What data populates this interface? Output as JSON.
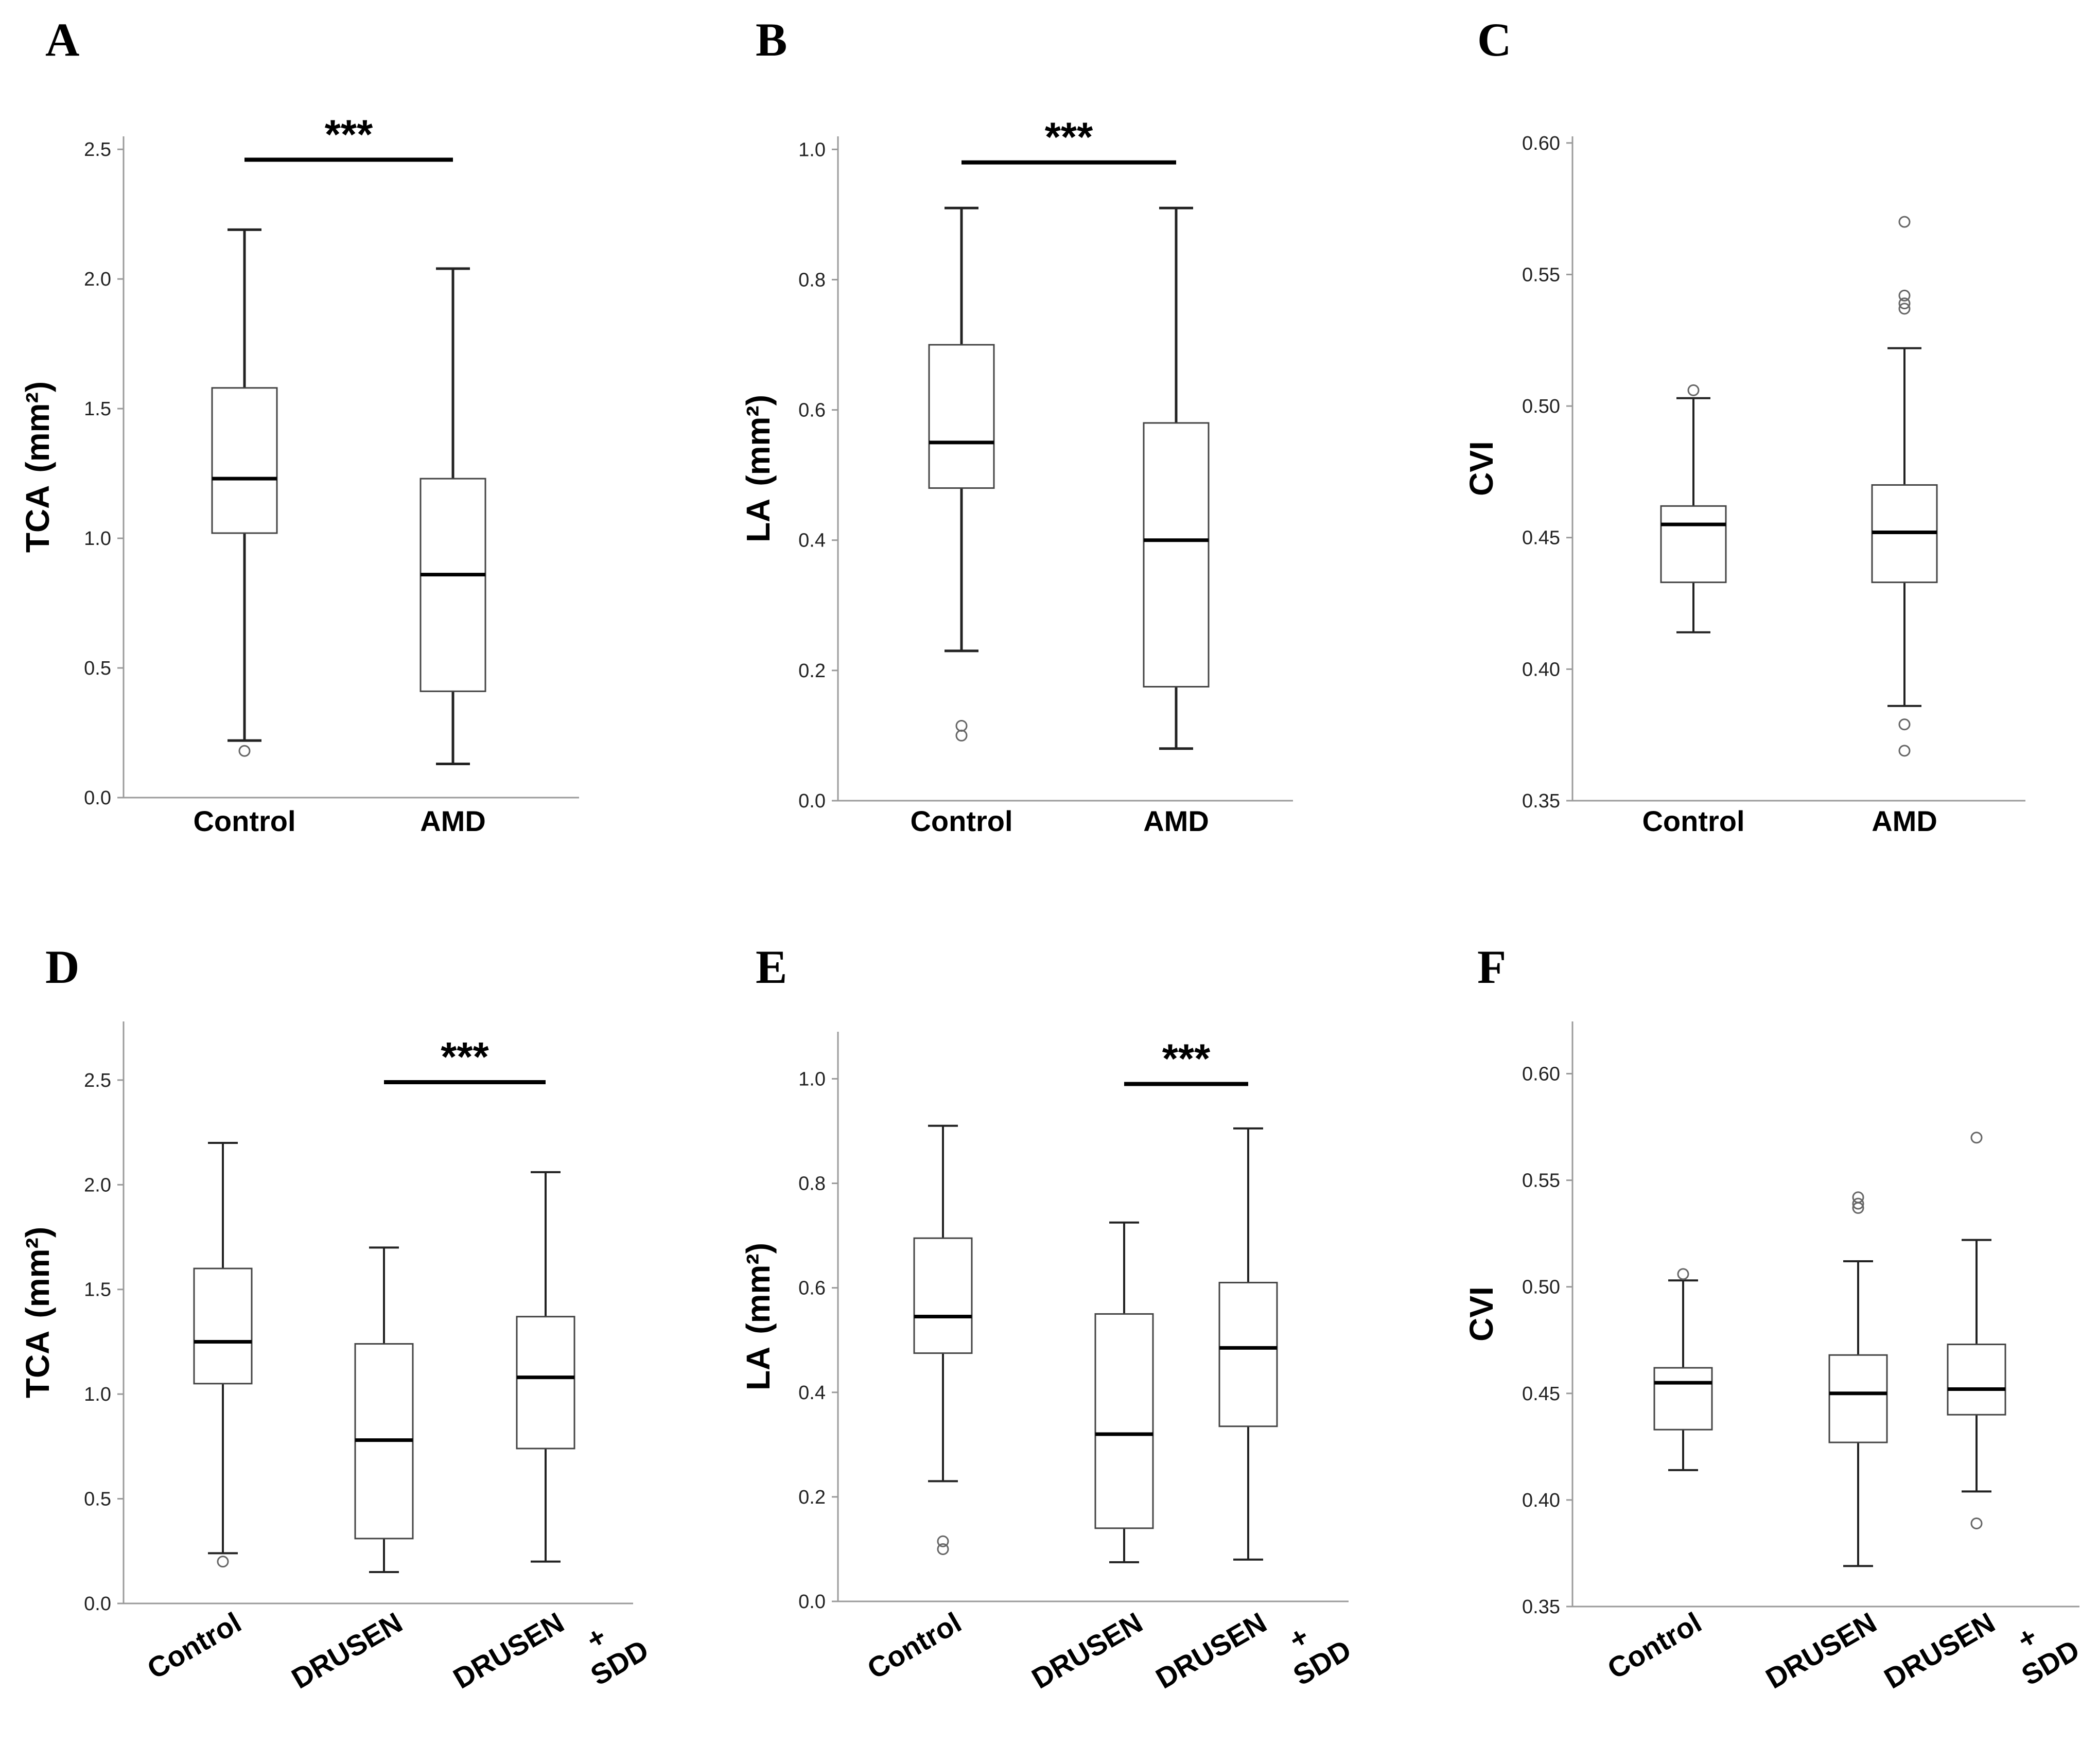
{
  "chart_data": [
    {
      "panel": "A",
      "type": "box",
      "ylabel": "TCA",
      "ylabel_unit": "(mm²)",
      "ylim": [
        0,
        2.55
      ],
      "yticks": [
        0.0,
        0.5,
        1.0,
        1.5,
        2.0,
        2.5
      ],
      "ytick_labels": [
        "0.0",
        "0.5",
        "1.0",
        "1.5",
        "2.0",
        "2.5"
      ],
      "categories": [
        "Control",
        "AMD"
      ],
      "label_rotation": 0,
      "boxes": [
        {
          "category": "Control",
          "whisker_low": 0.22,
          "q1": 1.02,
          "median": 1.23,
          "q3": 1.58,
          "whisker_high": 2.19,
          "outliers": [
            0.18
          ]
        },
        {
          "category": "AMD",
          "whisker_low": 0.13,
          "q1": 0.41,
          "median": 0.86,
          "q3": 1.23,
          "whisker_high": 2.04,
          "outliers": []
        }
      ],
      "significance": {
        "from": 0,
        "to": 1,
        "level": 2.46,
        "label": "***"
      }
    },
    {
      "panel": "B",
      "type": "box",
      "ylabel": "LA",
      "ylabel_unit": "(mm²)",
      "ylim": [
        0,
        1.02
      ],
      "yticks": [
        0.0,
        0.2,
        0.4,
        0.6,
        0.8,
        1.0
      ],
      "ytick_labels": [
        "0.0",
        "0.2",
        "0.4",
        "0.6",
        "0.8",
        "1.0"
      ],
      "categories": [
        "Control",
        "AMD"
      ],
      "label_rotation": 0,
      "boxes": [
        {
          "category": "Control",
          "whisker_low": 0.23,
          "q1": 0.48,
          "median": 0.55,
          "q3": 0.7,
          "whisker_high": 0.91,
          "outliers": [
            0.1,
            0.115
          ]
        },
        {
          "category": "AMD",
          "whisker_low": 0.08,
          "q1": 0.175,
          "median": 0.4,
          "q3": 0.58,
          "whisker_high": 0.91,
          "outliers": []
        }
      ],
      "significance": {
        "from": 0,
        "to": 1,
        "level": 0.98,
        "label": "***"
      }
    },
    {
      "panel": "C",
      "type": "box",
      "ylabel": "CVI",
      "ylabel_unit": "",
      "ylim": [
        0.35,
        0.6025
      ],
      "yticks": [
        0.35,
        0.4,
        0.45,
        0.5,
        0.55,
        0.6
      ],
      "ytick_labels": [
        "0.35",
        "0.40",
        "0.45",
        "0.50",
        "0.55",
        "0.60"
      ],
      "categories": [
        "Control",
        "AMD"
      ],
      "label_rotation": 0,
      "boxes": [
        {
          "category": "Control",
          "whisker_low": 0.414,
          "q1": 0.433,
          "median": 0.455,
          "q3": 0.462,
          "whisker_high": 0.503,
          "outliers": [
            0.506
          ]
        },
        {
          "category": "AMD",
          "whisker_low": 0.386,
          "q1": 0.433,
          "median": 0.452,
          "q3": 0.47,
          "whisker_high": 0.522,
          "outliers": [
            0.369,
            0.379,
            0.537,
            0.539,
            0.542,
            0.57
          ]
        }
      ],
      "significance": null
    },
    {
      "panel": "D",
      "type": "box",
      "ylabel": "TCA",
      "ylabel_unit": "(mm²)",
      "ylim": [
        0,
        2.78
      ],
      "yticks": [
        0.0,
        0.5,
        1.0,
        1.5,
        2.0,
        2.5
      ],
      "ytick_labels": [
        "0.0",
        "0.5",
        "1.0",
        "1.5",
        "2.0",
        "2.5"
      ],
      "categories": [
        "Control",
        "DRUSEN",
        "DRUSEN|+|SDD"
      ],
      "label_rotation": -30,
      "boxes": [
        {
          "category": "Control",
          "whisker_low": 0.24,
          "q1": 1.05,
          "median": 1.25,
          "q3": 1.6,
          "whisker_high": 2.2,
          "outliers": [
            0.2
          ]
        },
        {
          "category": "DRUSEN",
          "whisker_low": 0.15,
          "q1": 0.31,
          "median": 0.78,
          "q3": 1.24,
          "whisker_high": 1.7,
          "outliers": []
        },
        {
          "category": "DRUSEN + SDD",
          "whisker_low": 0.2,
          "q1": 0.74,
          "median": 1.08,
          "q3": 1.37,
          "whisker_high": 2.06,
          "outliers": []
        }
      ],
      "significance": {
        "from": 1,
        "to": 2,
        "level": 2.49,
        "label": "***"
      }
    },
    {
      "panel": "E",
      "type": "box",
      "ylabel": "LA",
      "ylabel_unit": "(mm²)",
      "ylim": [
        0,
        1.09
      ],
      "yticks": [
        0.0,
        0.2,
        0.4,
        0.6,
        0.8,
        1.0
      ],
      "ytick_labels": [
        "0.0",
        "0.2",
        "0.4",
        "0.6",
        "0.8",
        "1.0"
      ],
      "categories": [
        "Control",
        "DRUSEN",
        "DRUSEN|+|SDD"
      ],
      "label_rotation": -30,
      "boxes": [
        {
          "category": "Control",
          "whisker_low": 0.23,
          "q1": 0.475,
          "median": 0.545,
          "q3": 0.695,
          "whisker_high": 0.91,
          "outliers": [
            0.1,
            0.115
          ]
        },
        {
          "category": "DRUSEN",
          "whisker_low": 0.075,
          "q1": 0.14,
          "median": 0.32,
          "q3": 0.55,
          "whisker_high": 0.725,
          "outliers": []
        },
        {
          "category": "DRUSEN + SDD",
          "whisker_low": 0.08,
          "q1": 0.335,
          "median": 0.485,
          "q3": 0.61,
          "whisker_high": 0.905,
          "outliers": []
        }
      ],
      "significance": {
        "from": 1,
        "to": 2,
        "level": 0.99,
        "label": "***"
      }
    },
    {
      "panel": "F",
      "type": "box",
      "ylabel": "CVI",
      "ylabel_unit": "",
      "ylim": [
        0.35,
        0.6245
      ],
      "yticks": [
        0.35,
        0.4,
        0.45,
        0.5,
        0.55,
        0.6
      ],
      "ytick_labels": [
        "0.35",
        "0.40",
        "0.45",
        "0.50",
        "0.55",
        "0.60"
      ],
      "categories": [
        "Control",
        "DRUSEN",
        "DRUSEN|+|SDD"
      ],
      "label_rotation": -30,
      "boxes": [
        {
          "category": "Control",
          "whisker_low": 0.414,
          "q1": 0.433,
          "median": 0.455,
          "q3": 0.462,
          "whisker_high": 0.503,
          "outliers": [
            0.506
          ]
        },
        {
          "category": "DRUSEN",
          "whisker_low": 0.369,
          "q1": 0.427,
          "median": 0.45,
          "q3": 0.468,
          "whisker_high": 0.512,
          "outliers": [
            0.537,
            0.539,
            0.542
          ]
        },
        {
          "category": "DRUSEN + SDD",
          "whisker_low": 0.404,
          "q1": 0.44,
          "median": 0.452,
          "q3": 0.473,
          "whisker_high": 0.522,
          "outliers": [
            0.389,
            0.57
          ]
        }
      ],
      "significance": null
    }
  ]
}
